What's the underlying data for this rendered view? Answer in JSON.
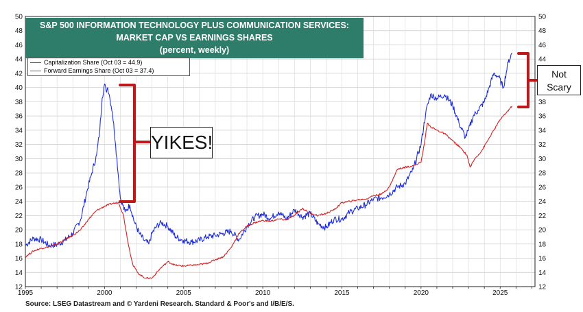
{
  "chart_data": {
    "type": "line",
    "title_lines": [
      "S&P 500 INFORMATION TECHNOLOGY PLUS COMMUNICATION SERVICES:",
      "MARKET CAP VS EARNINGS SHARES",
      "(percent, weekly)"
    ],
    "xlim": [
      1995,
      2027.2
    ],
    "ylim": [
      12,
      50
    ],
    "x_ticks": [
      1995,
      2000,
      2005,
      2010,
      2015,
      2020,
      2025
    ],
    "y_ticks": [
      12,
      14,
      16,
      18,
      20,
      22,
      24,
      26,
      28,
      30,
      32,
      34,
      36,
      38,
      40,
      42,
      44,
      46,
      48,
      50
    ],
    "grid": true,
    "legend_position": "top-left",
    "series": [
      {
        "name": "Capitalization Share  (Oct 03 = 44.9)",
        "color": "#1f2fd6",
        "x": [
          1995.0,
          1995.5,
          1996.0,
          1996.5,
          1997.0,
          1997.5,
          1998.0,
          1998.5,
          1998.9,
          1999.2,
          1999.5,
          1999.7,
          1999.85,
          2000.0,
          2000.1,
          2000.2,
          2000.3,
          2000.5,
          2000.7,
          2000.9,
          2001.0,
          2001.3,
          2001.6,
          2001.9,
          2002.2,
          2002.5,
          2002.8,
          2003.0,
          2003.3,
          2003.6,
          2004.0,
          2004.5,
          2005.0,
          2005.5,
          2006.0,
          2006.5,
          2007.0,
          2007.5,
          2008.0,
          2008.5,
          2009.0,
          2009.5,
          2010.0,
          2010.5,
          2011.0,
          2011.5,
          2012.0,
          2012.5,
          2013.0,
          2013.5,
          2014.0,
          2014.5,
          2015.0,
          2015.5,
          2016.0,
          2016.5,
          2017.0,
          2017.5,
          2018.0,
          2018.5,
          2019.0,
          2019.5,
          2020.0,
          2020.3,
          2020.6,
          2021.0,
          2021.5,
          2022.0,
          2022.4,
          2022.8,
          2023.0,
          2023.3,
          2023.6,
          2024.0,
          2024.3,
          2024.6,
          2024.9,
          2025.2,
          2025.5,
          2025.75
        ],
        "values": [
          17.8,
          18.8,
          18.6,
          17.8,
          17.9,
          18.5,
          19.5,
          21.5,
          25.5,
          28.0,
          30.5,
          34.0,
          38.5,
          40.5,
          39.5,
          40.0,
          39.0,
          36.5,
          32.0,
          27.0,
          24.5,
          22.5,
          23.5,
          21.0,
          19.5,
          18.5,
          18.0,
          19.5,
          20.5,
          21.0,
          20.5,
          19.0,
          18.5,
          18.3,
          18.5,
          19.0,
          19.2,
          19.5,
          19.8,
          18.6,
          20.5,
          21.8,
          22.2,
          21.6,
          22.5,
          21.5,
          22.8,
          21.8,
          22.3,
          20.8,
          20.3,
          21.5,
          21.5,
          22.5,
          23.0,
          23.5,
          24.3,
          24.5,
          25.0,
          26.0,
          26.5,
          28.5,
          32.0,
          36.5,
          39.0,
          38.5,
          39.0,
          37.5,
          35.0,
          33.0,
          34.0,
          36.0,
          36.8,
          38.0,
          40.0,
          42.0,
          41.5,
          40.0,
          43.5,
          44.9
        ]
      },
      {
        "name": "Forward Earnings Share (Oct 03 = 37.4)",
        "color": "#d42222",
        "x": [
          1995.0,
          1995.5,
          1996.0,
          1996.5,
          1997.0,
          1997.5,
          1998.0,
          1998.5,
          1999.0,
          1999.5,
          2000.0,
          2000.5,
          2000.9,
          2001.2,
          2001.5,
          2001.8,
          2002.2,
          2002.6,
          2003.0,
          2003.5,
          2004.0,
          2004.5,
          2005.0,
          2005.5,
          2006.0,
          2006.5,
          2007.0,
          2007.5,
          2008.0,
          2008.5,
          2009.0,
          2009.5,
          2010.0,
          2010.5,
          2011.0,
          2011.5,
          2012.0,
          2012.5,
          2013.0,
          2013.5,
          2014.0,
          2014.5,
          2015.0,
          2015.5,
          2016.0,
          2016.5,
          2017.0,
          2017.5,
          2018.0,
          2018.5,
          2019.0,
          2019.5,
          2020.0,
          2020.2,
          2020.4,
          2020.6,
          2021.0,
          2021.5,
          2022.0,
          2022.5,
          2022.9,
          2023.1,
          2023.4,
          2023.8,
          2024.2,
          2024.6,
          2025.0,
          2025.4,
          2025.75
        ],
        "values": [
          16.2,
          17.0,
          17.4,
          17.6,
          18.0,
          18.6,
          19.2,
          20.0,
          21.5,
          22.7,
          23.3,
          23.7,
          23.8,
          22.0,
          18.0,
          15.0,
          13.7,
          13.2,
          13.2,
          14.5,
          15.5,
          15.0,
          14.9,
          15.0,
          15.1,
          15.3,
          15.8,
          16.2,
          17.5,
          19.5,
          20.5,
          21.0,
          21.3,
          21.2,
          21.5,
          21.4,
          22.0,
          23.0,
          22.3,
          22.0,
          22.3,
          22.8,
          23.8,
          24.0,
          24.2,
          24.3,
          24.8,
          25.0,
          26.0,
          28.5,
          28.8,
          29.0,
          29.5,
          32.0,
          35.0,
          34.5,
          34.0,
          33.5,
          32.5,
          31.5,
          30.5,
          28.8,
          30.0,
          31.0,
          32.5,
          34.0,
          35.5,
          36.5,
          37.4
        ]
      }
    ],
    "annotations": {
      "yikes": "YIKES!",
      "not_scary_line1": "Not",
      "not_scary_line2": "Scary"
    },
    "source": "Source: LSEG Datastream and © Yardeni Research. Standard & Poor's and I/B/E/S."
  }
}
